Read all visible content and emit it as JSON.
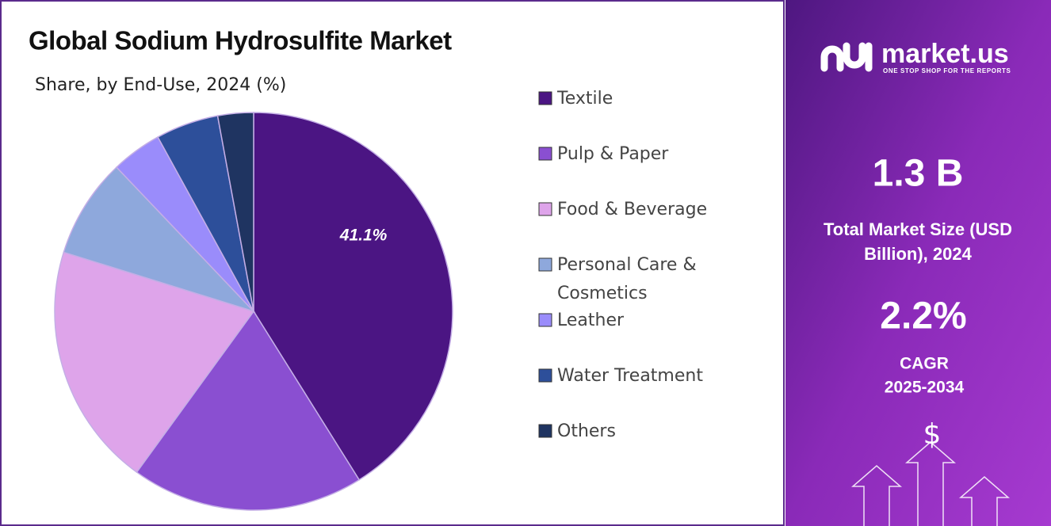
{
  "chart_data": {
    "type": "pie",
    "title": "Global Sodium Hydrosulfite Market",
    "subtitle": "Share, by End-Use, 2024 (%)",
    "categories": [
      "Textile",
      "Pulp & Paper",
      "Food & Beverage",
      "Personal Care & Cosmetics",
      "Leather",
      "Water Treatment",
      "Others"
    ],
    "values": [
      41.1,
      18.9,
      19.8,
      8.1,
      4.1,
      5.1,
      2.9
    ],
    "value_labels": [
      "41.1%",
      null,
      null,
      null,
      null,
      null,
      null
    ],
    "colors": [
      "#4b1583",
      "#8a4fd1",
      "#dea4ea",
      "#8ea8dc",
      "#9a8cfb",
      "#2d4f9a",
      "#1f3461"
    ],
    "legend": "right"
  },
  "sidebar": {
    "brand": "market.us",
    "tagline": "ONE STOP SHOP FOR THE REPORTS",
    "market_size": "1.3 B",
    "market_size_label": "Total Market Size (USD Billion), 2024",
    "cagr": "2.2%",
    "cagr_label": "CAGR",
    "cagr_period": "2025-2034"
  }
}
